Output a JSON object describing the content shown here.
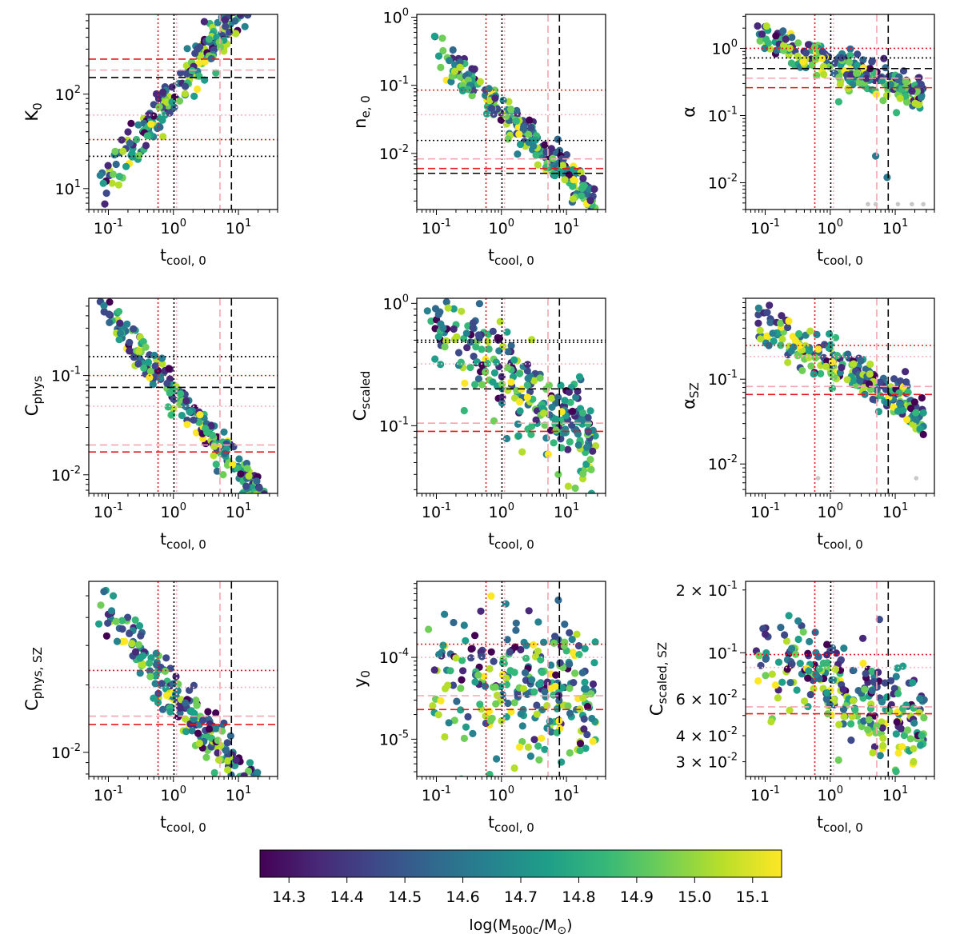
{
  "figure": {
    "type": "scatter-grid",
    "rows": 3,
    "cols": 3
  },
  "colors": {
    "black": "#000000",
    "red": "#e41a1c",
    "pink": "#f4a6b0",
    "lightpink": "#f7b5c0",
    "colormap": [
      "#440154",
      "#482878",
      "#3e4989",
      "#31688e",
      "#26828e",
      "#1f9e89",
      "#35b779",
      "#6ece58",
      "#b5de2b",
      "#fde725"
    ]
  },
  "shared": {
    "xlabel_main": "t",
    "xlabel_sub": "cool, 0",
    "xlim": [
      0.05,
      40
    ],
    "xticks": [
      {
        "v": 0.1,
        "m": "10",
        "e": "-1"
      },
      {
        "v": 1,
        "m": "10",
        "e": "0"
      },
      {
        "v": 10,
        "m": "10",
        "e": "1"
      }
    ],
    "vlines": [
      {
        "v": 0.58,
        "style": "red-dot"
      },
      {
        "v": 1.02,
        "style": "black-dot"
      },
      {
        "v": 1.12,
        "style": "pink-dot"
      },
      {
        "v": 5.2,
        "style": "pink-dash"
      },
      {
        "v": 7.8,
        "style": "black-dash"
      }
    ]
  },
  "chart_data": [
    {
      "id": "K0",
      "type": "scatter",
      "ylabel_main": "K",
      "ylabel_sub": "0",
      "ylim": [
        6,
        700
      ],
      "yticks": [
        {
          "v": 10,
          "m": "10",
          "e": "1"
        },
        {
          "v": 100,
          "m": "10",
          "e": "2"
        }
      ],
      "trend": {
        "a": 100,
        "b": 0.9,
        "scatter": 0.13
      },
      "hlines": [
        {
          "v": 235,
          "style": "red-dash"
        },
        {
          "v": 180,
          "style": "pink-dash"
        },
        {
          "v": 150,
          "style": "black-dash"
        },
        {
          "v": 60,
          "style": "pink-dot"
        },
        {
          "v": 33,
          "style": "red-dot"
        },
        {
          "v": 22,
          "style": "black-dot"
        }
      ]
    },
    {
      "id": "ne0",
      "type": "scatter",
      "ylabel_main": "n",
      "ylabel_sub": "e, 0",
      "ylim": [
        0.0015,
        1.1
      ],
      "yticks": [
        {
          "v": 0.01,
          "m": "10",
          "e": "-2"
        },
        {
          "v": 0.1,
          "m": "10",
          "e": "-1"
        },
        {
          "v": 1,
          "m": "10",
          "e": "0"
        }
      ],
      "trend": {
        "a": 0.042,
        "b": -0.95,
        "scatter": 0.12
      },
      "hlines": [
        {
          "v": 0.085,
          "style": "red-dot"
        },
        {
          "v": 0.037,
          "style": "pink-dot"
        },
        {
          "v": 0.0155,
          "style": "black-dot"
        },
        {
          "v": 0.0083,
          "style": "pink-dash"
        },
        {
          "v": 0.006,
          "style": "red-dash"
        },
        {
          "v": 0.0051,
          "style": "black-dash"
        }
      ]
    },
    {
      "id": "alpha",
      "type": "scatter",
      "ylabel_main": "α",
      "ylabel_sub": "",
      "ylim": [
        0.004,
        3.2
      ],
      "yticks": [
        {
          "v": 0.01,
          "m": "10",
          "e": "-2"
        },
        {
          "v": 0.1,
          "m": "10",
          "e": "-1"
        },
        {
          "v": 1,
          "m": "10",
          "e": "0"
        }
      ],
      "trend": {
        "a": 0.62,
        "b": -0.35,
        "scatter": 0.13
      },
      "extra_points": [
        {
          "x": 5,
          "y": 0.025
        },
        {
          "x": 7.5,
          "y": 0.012
        }
      ],
      "grey_points": [
        {
          "x": 3.8,
          "y": 0.0048
        },
        {
          "x": 5,
          "y": 0.0048
        },
        {
          "x": 11,
          "y": 0.0048
        },
        {
          "x": 18,
          "y": 0.0048
        },
        {
          "x": 27,
          "y": 0.0048
        }
      ],
      "hlines": [
        {
          "v": 1.0,
          "style": "red-dot"
        },
        {
          "v": 0.72,
          "style": "black-dot"
        },
        {
          "v": 0.5,
          "style": "black-dash"
        },
        {
          "v": 0.36,
          "style": "pink-dash"
        },
        {
          "v": 0.26,
          "style": "red-dash"
        }
      ]
    },
    {
      "id": "Cphys",
      "type": "scatter",
      "ylabel_main": "C",
      "ylabel_sub": "phys",
      "ylim": [
        0.0065,
        0.6
      ],
      "yticks": [
        {
          "v": 0.01,
          "m": "10",
          "e": "-2"
        },
        {
          "v": 0.1,
          "m": "10",
          "e": "-1"
        }
      ],
      "trend": {
        "a": 0.068,
        "b": -0.78,
        "scatter": 0.09
      },
      "hlines": [
        {
          "v": 0.155,
          "style": "black-dot"
        },
        {
          "v": 0.1,
          "style": "red-dot"
        },
        {
          "v": 0.076,
          "style": "black-dash"
        },
        {
          "v": 0.049,
          "style": "pink-dot"
        },
        {
          "v": 0.02,
          "style": "pink-dash"
        },
        {
          "v": 0.017,
          "style": "red-dash"
        }
      ]
    },
    {
      "id": "Cscaled",
      "type": "scatter",
      "ylabel_main": "C",
      "ylabel_sub": "scaled",
      "ylim": [
        0.028,
        1.1
      ],
      "yticks": [
        {
          "v": 0.1,
          "m": "10",
          "e": "-1"
        },
        {
          "v": 1,
          "m": "10",
          "e": "0"
        }
      ],
      "trend": {
        "a": 0.27,
        "b": -0.42,
        "scatter": 0.18
      },
      "hlines": [
        {
          "v": 0.5,
          "style": "black-dot"
        },
        {
          "v": 0.48,
          "style": "black-dot"
        },
        {
          "v": 0.32,
          "style": "pink-dot"
        },
        {
          "v": 0.2,
          "style": "black-dash"
        },
        {
          "v": 0.105,
          "style": "pink-dash"
        },
        {
          "v": 0.09,
          "style": "red-dash"
        }
      ]
    },
    {
      "id": "alphaSZ",
      "type": "scatter",
      "ylabel_main": "α",
      "ylabel_sub": "SZ",
      "ylim": [
        0.0045,
        0.9
      ],
      "yticks": [
        {
          "v": 0.01,
          "m": "10",
          "e": "-2"
        },
        {
          "v": 0.1,
          "m": "10",
          "e": "-1"
        }
      ],
      "trend": {
        "a": 0.16,
        "b": -0.42,
        "scatter": 0.13
      },
      "grey_points": [
        {
          "x": 0.65,
          "y": 0.0068
        },
        {
          "x": 21,
          "y": 0.0068
        }
      ],
      "hlines": [
        {
          "v": 0.25,
          "style": "red-dot"
        },
        {
          "v": 0.185,
          "style": "pink-dot"
        },
        {
          "v": 0.082,
          "style": "pink-dash"
        },
        {
          "v": 0.066,
          "style": "red-dash"
        }
      ]
    },
    {
      "id": "CphysSZ",
      "type": "scatter",
      "ylabel_main": "C",
      "ylabel_sub": "phys, SZ",
      "ylim": [
        0.0078,
        0.058
      ],
      "yticks": [
        {
          "v": 0.01,
          "m": "10",
          "e": "-2"
        }
      ],
      "trend": {
        "a": 0.0185,
        "b": -0.35,
        "scatter": 0.06
      },
      "hlines": [
        {
          "v": 0.0232,
          "style": "red-dot"
        },
        {
          "v": 0.0195,
          "style": "pink-dot"
        },
        {
          "v": 0.0145,
          "style": "pink-dash"
        },
        {
          "v": 0.0133,
          "style": "red-dash"
        }
      ]
    },
    {
      "id": "y0",
      "type": "scatter",
      "ylabel_main": "y",
      "ylabel_sub": "0",
      "ylim": [
        3.5e-06,
        0.00085
      ],
      "yticks": [
        {
          "v": 1e-05,
          "m": "10",
          "e": "-5"
        },
        {
          "v": 0.0001,
          "m": "10",
          "e": "-4"
        }
      ],
      "trend": {
        "a": 5.5e-05,
        "b": -0.15,
        "scatter": 0.42
      },
      "hlines": [
        {
          "v": 0.000145,
          "style": "red-dot"
        },
        {
          "v": 0.0001,
          "style": "pink-dot"
        },
        {
          "v": 3.4e-05,
          "style": "pink-dash"
        },
        {
          "v": 2.3e-05,
          "style": "red-dash"
        }
      ]
    },
    {
      "id": "CscaledSZ",
      "type": "scatter",
      "ylabel_main": "C",
      "ylabel_sub": "scaled, SZ",
      "ylim": [
        0.0255,
        0.22
      ],
      "yticks": [
        {
          "v": 0.2,
          "m": "2 × 10",
          "e": "-1"
        },
        {
          "v": 0.1,
          "m": "10",
          "e": "-1"
        },
        {
          "v": 0.06,
          "m": "6 × 10",
          "e": "-2"
        },
        {
          "v": 0.04,
          "m": "4 × 10",
          "e": "-2"
        },
        {
          "v": 0.03,
          "m": "3 × 10",
          "e": "-2"
        }
      ],
      "trend": {
        "a": 0.071,
        "b": -0.15,
        "scatter": 0.11
      },
      "hlines": [
        {
          "v": 0.098,
          "style": "red-dot"
        },
        {
          "v": 0.085,
          "style": "pink-dot"
        },
        {
          "v": 0.055,
          "style": "pink-dash"
        },
        {
          "v": 0.051,
          "style": "red-dash"
        }
      ]
    }
  ],
  "colorbar": {
    "label_main": "log(M",
    "label_sub": "500c",
    "label_mid": "/M",
    "label_sub2": "⊙",
    "label_end": ")",
    "vmin": 14.25,
    "vmax": 15.15,
    "ticks": [
      "14.3",
      "14.4",
      "14.5",
      "14.6",
      "14.7",
      "14.8",
      "14.9",
      "15.0",
      "15.1"
    ]
  }
}
